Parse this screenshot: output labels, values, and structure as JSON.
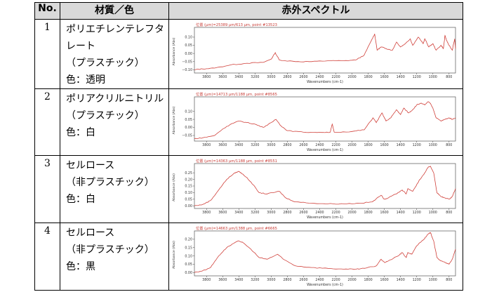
{
  "caption_top": "",
  "caption_bottom": "",
  "header": {
    "no": "No.",
    "material": "材質／色",
    "spectrum": "赤外スペクトル"
  },
  "rows": [
    {
      "no": "1",
      "lines": [
        "ポリエチレンテレフタ",
        "レート",
        "（プラスチック）",
        "色：透明"
      ],
      "spectrum": {
        "annotation": "位置 (μm)=25389 μm/613 μm, point #13523",
        "ylabel": "Absorbance (Abs)",
        "xlabel": "Wavenumbers (cm-1)",
        "yticks": [
          "0.10",
          "0.05",
          "0.00",
          "−0.05",
          "−0.10"
        ]
      }
    },
    {
      "no": "2",
      "lines": [
        "ポリアクリルニトリル",
        "（プラスチック）",
        "色：白"
      ],
      "spectrum": {
        "annotation": "位置 (μm)=14713 μm/1188 μm, point #8565",
        "ylabel": "Absorbance (Abs)",
        "xlabel": "Wavenumbers (cm-1)",
        "yticks": [
          "0.10",
          "0.05",
          "0.00",
          "−0.05"
        ]
      }
    },
    {
      "no": "3",
      "lines": [
        "セルロース",
        "（非プラスチック）",
        "色：白"
      ],
      "spectrum": {
        "annotation": "位置 (μm)=14363 μm/1188 μm, point #8551",
        "ylabel": "Absorbance (Abs)",
        "xlabel": "Wavenumbers (cm-1)",
        "yticks": [
          "0.25",
          "0.20",
          "0.15",
          "0.10",
          "0.05",
          "0.00"
        ]
      }
    },
    {
      "no": "4",
      "lines": [
        "セルロース",
        "（非プラスチック）",
        "色：黒"
      ],
      "spectrum": {
        "annotation": "位置 (μm)=14663 μm/1388 μm, point #6665",
        "ylabel": "Absorbance (Abs)",
        "xlabel": "Wavenumbers (cm-1)",
        "yticks": [
          "0.20",
          "0.15",
          "0.10",
          "0.05",
          "0.00"
        ]
      }
    }
  ],
  "xticks": [
    "3800",
    "3600",
    "3400",
    "3200",
    "3000",
    "2800",
    "2600",
    "2400",
    "2200",
    "2000",
    "1800",
    "1600",
    "1400",
    "1200",
    "1000",
    "800"
  ],
  "colors": {
    "line": "#d0403a",
    "annotation": "#c83c36",
    "header_bg": "#d9d9d9"
  }
}
